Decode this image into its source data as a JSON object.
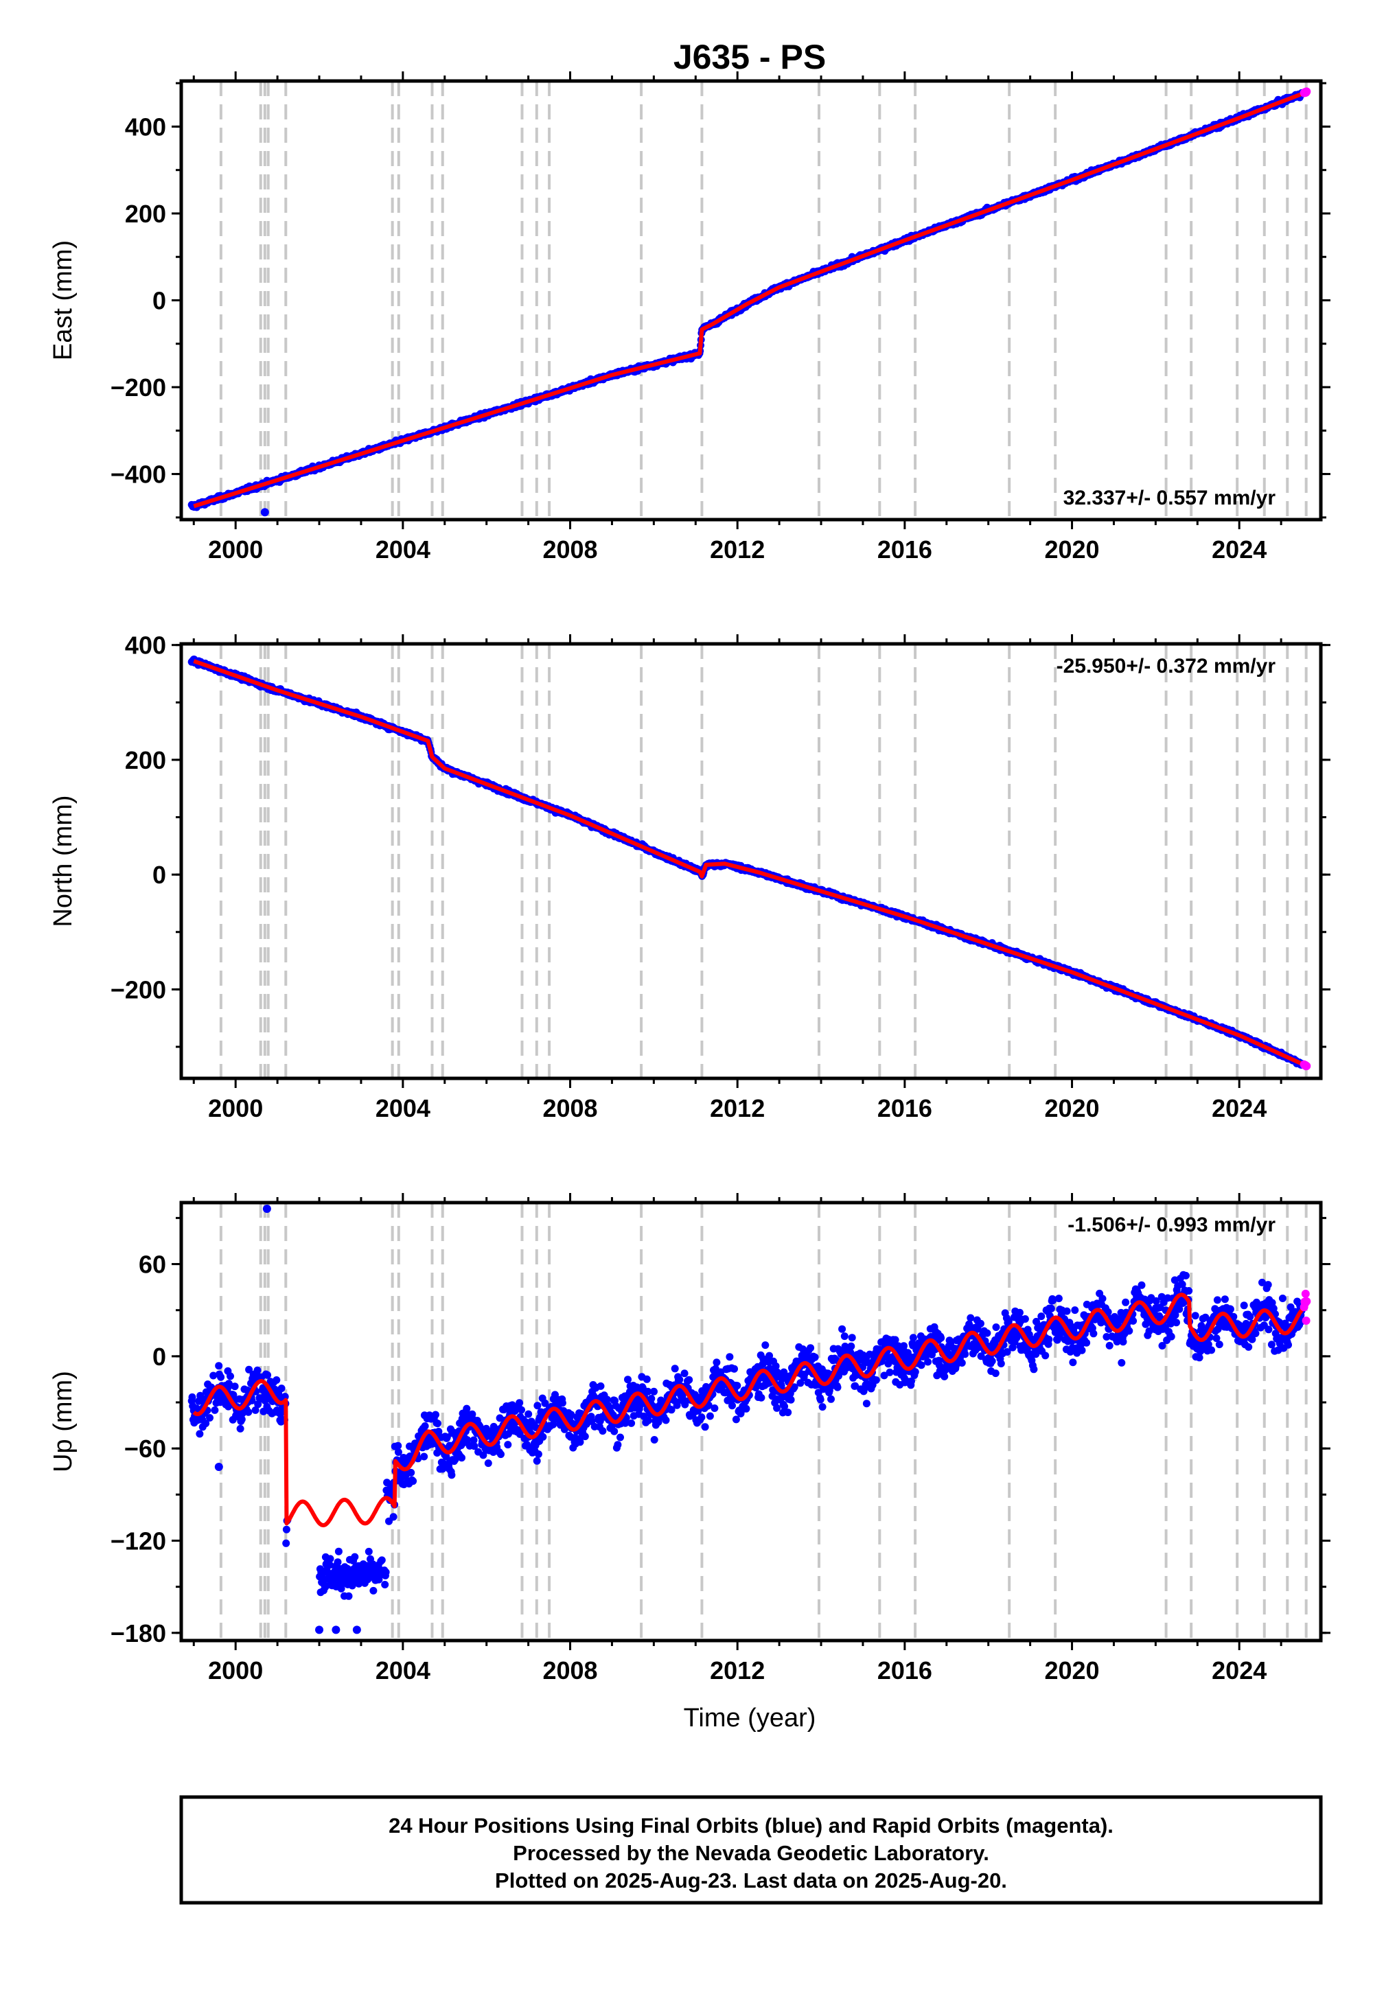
{
  "chart_data": [
    {
      "type": "scatter",
      "panel": "east",
      "title": "J635 - PS",
      "xlabel": "",
      "ylabel": "East (mm)",
      "xlim": [
        1998.7,
        2025.95
      ],
      "ylim": [
        -505,
        505
      ],
      "xticks": [
        2000,
        2004,
        2008,
        2012,
        2016,
        2020,
        2024
      ],
      "yticks": [
        -400,
        -200,
        0,
        200,
        400
      ],
      "rate_label": "32.337+/- 0.557 mm/yr",
      "rate_position": "bottom-right",
      "grid": false,
      "model_line": [
        [
          1999.0,
          -474
        ],
        [
          2001.0,
          -414
        ],
        [
          2004.0,
          -323
        ],
        [
          2007.0,
          -233
        ],
        [
          2009.0,
          -172
        ],
        [
          2011.1,
          -122
        ],
        [
          2011.15,
          -67
        ],
        [
          2011.4,
          -55
        ],
        [
          2012.2,
          -10
        ],
        [
          2013.0,
          30
        ],
        [
          2016.0,
          138
        ],
        [
          2020.0,
          277
        ],
        [
          2024.0,
          420
        ],
        [
          2025.6,
          479
        ]
      ],
      "final_orbits": {
        "start": 1998.95,
        "end": 2025.5,
        "noise_mm": 4,
        "outliers": [
          [
            2000.7,
            -488
          ]
        ]
      },
      "rapid_orbits": {
        "start": 2025.55,
        "end": 2025.62
      }
    },
    {
      "type": "scatter",
      "panel": "north",
      "xlabel": "",
      "ylabel": "North (mm)",
      "xlim": [
        1998.7,
        2025.95
      ],
      "ylim": [
        -355,
        402
      ],
      "xticks": [
        2000,
        2004,
        2008,
        2012,
        2016,
        2020,
        2024
      ],
      "yticks": [
        -200,
        0,
        200,
        400
      ],
      "rate_label": "-25.950+/- 0.372 mm/yr",
      "rate_position": "top-right",
      "grid": false,
      "model_line": [
        [
          1999.0,
          372
        ],
        [
          2001.0,
          321
        ],
        [
          2003.0,
          275
        ],
        [
          2004.6,
          233
        ],
        [
          2004.7,
          205
        ],
        [
          2005.0,
          185
        ],
        [
          2008.0,
          103
        ],
        [
          2011.1,
          5
        ],
        [
          2011.15,
          -3
        ],
        [
          2011.25,
          17
        ],
        [
          2011.7,
          19
        ],
        [
          2012.5,
          4
        ],
        [
          2016.0,
          -73
        ],
        [
          2020.0,
          -170
        ],
        [
          2024.0,
          -280
        ],
        [
          2025.6,
          -333
        ]
      ],
      "final_orbits": {
        "start": 1998.95,
        "end": 2025.5,
        "noise_mm": 3,
        "outliers": []
      },
      "rapid_orbits": {
        "start": 2025.55,
        "end": 2025.62
      }
    },
    {
      "type": "scatter",
      "panel": "up",
      "xlabel": "Time (year)",
      "ylabel": "Up (mm)",
      "xlim": [
        1998.7,
        2025.95
      ],
      "ylim": [
        -185,
        100
      ],
      "xticks": [
        2000,
        2004,
        2008,
        2012,
        2016,
        2020,
        2024
      ],
      "yticks": [
        -180,
        -120,
        -60,
        0,
        60
      ],
      "rate_label": "-1.506+/- 0.993 mm/yr",
      "rate_position": "top-right",
      "grid": false,
      "model_segments": [
        [
          [
            1999.0,
            -30
          ],
          [
            2001.2,
            -22
          ]
        ],
        [
          [
            2001.2,
            -103
          ],
          [
            2003.8,
            -100
          ]
        ],
        [
          [
            2003.8,
            -70
          ],
          [
            2004.6,
            -57
          ]
        ],
        [
          [
            2004.6,
            -57
          ],
          [
            2022.8,
            33
          ]
        ],
        [
          [
            2022.8,
            18
          ],
          [
            2025.6,
            24
          ]
        ]
      ],
      "seasonal_amplitude_mm": 8,
      "final_orbits": {
        "gaps": [
          [
            2001.25,
            2002.0
          ]
        ],
        "noise_mm": 12,
        "outliers": [
          [
            2000.75,
            96
          ],
          [
            1999.6,
            -72
          ],
          [
            2002.0,
            -178
          ],
          [
            2002.4,
            -178
          ],
          [
            2002.9,
            -178
          ]
        ]
      },
      "low_cluster": {
        "start": 2002.0,
        "end": 2003.6,
        "center_mm": -142
      },
      "rapid_orbits": {
        "start": 2025.55,
        "end": 2025.62
      }
    }
  ],
  "event_lines": [
    1999.65,
    2000.6,
    2000.7,
    2000.78,
    2001.2,
    2003.75,
    2003.9,
    2004.7,
    2004.95,
    2006.85,
    2007.2,
    2007.5,
    2009.7,
    2011.15,
    2013.95,
    2015.4,
    2016.25,
    2018.5,
    2019.6,
    2022.25,
    2022.85,
    2023.95,
    2024.6,
    2025.15,
    2025.6
  ],
  "colors": {
    "final": "#0000ff",
    "rapid": "#ff00ff",
    "model": "#ff0000",
    "event": "#c8c8c8"
  },
  "footer": {
    "line1": "24 Hour Positions Using Final Orbits (blue) and Rapid Orbits (magenta).",
    "line2": "Processed by the Nevada Geodetic Laboratory.",
    "line3": "Plotted on 2025-Aug-23. Last data on 2025-Aug-20."
  }
}
